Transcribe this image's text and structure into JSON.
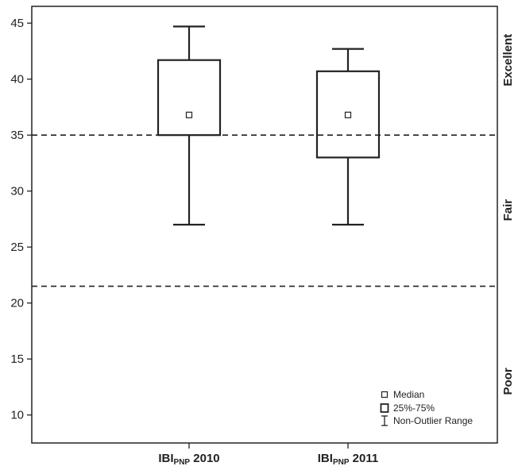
{
  "chart_data": {
    "type": "boxplot",
    "categories": [
      {
        "base": "IBI",
        "subscript": "PNP",
        "suffix": " 2010"
      },
      {
        "base": "IBI",
        "subscript": "PNP",
        "suffix": " 2011"
      }
    ],
    "boxes": [
      {
        "whisker_low": 27,
        "q1": 35,
        "median": 36.8,
        "q3": 41.7,
        "whisker_high": 44.7
      },
      {
        "whisker_low": 27,
        "q1": 33,
        "median": 36.8,
        "q3": 40.7,
        "whisker_high": 42.7
      }
    ],
    "ylim": [
      7.5,
      46.5
    ],
    "yticks": [
      10,
      15,
      20,
      25,
      30,
      35,
      40,
      45
    ],
    "reference_lines": [
      35,
      21.5
    ],
    "zones": [
      {
        "label": "Excellent",
        "center": 41.7
      },
      {
        "label": "Fair",
        "center": 28.3
      },
      {
        "label": "Poor",
        "center": 13
      }
    ],
    "legend": {
      "position": "bottom-right",
      "items": [
        "Median",
        "25%-75%",
        "Non-Outlier Range"
      ]
    },
    "grid": false,
    "colors": {
      "stroke": "#222222",
      "background": "#ffffff"
    }
  }
}
